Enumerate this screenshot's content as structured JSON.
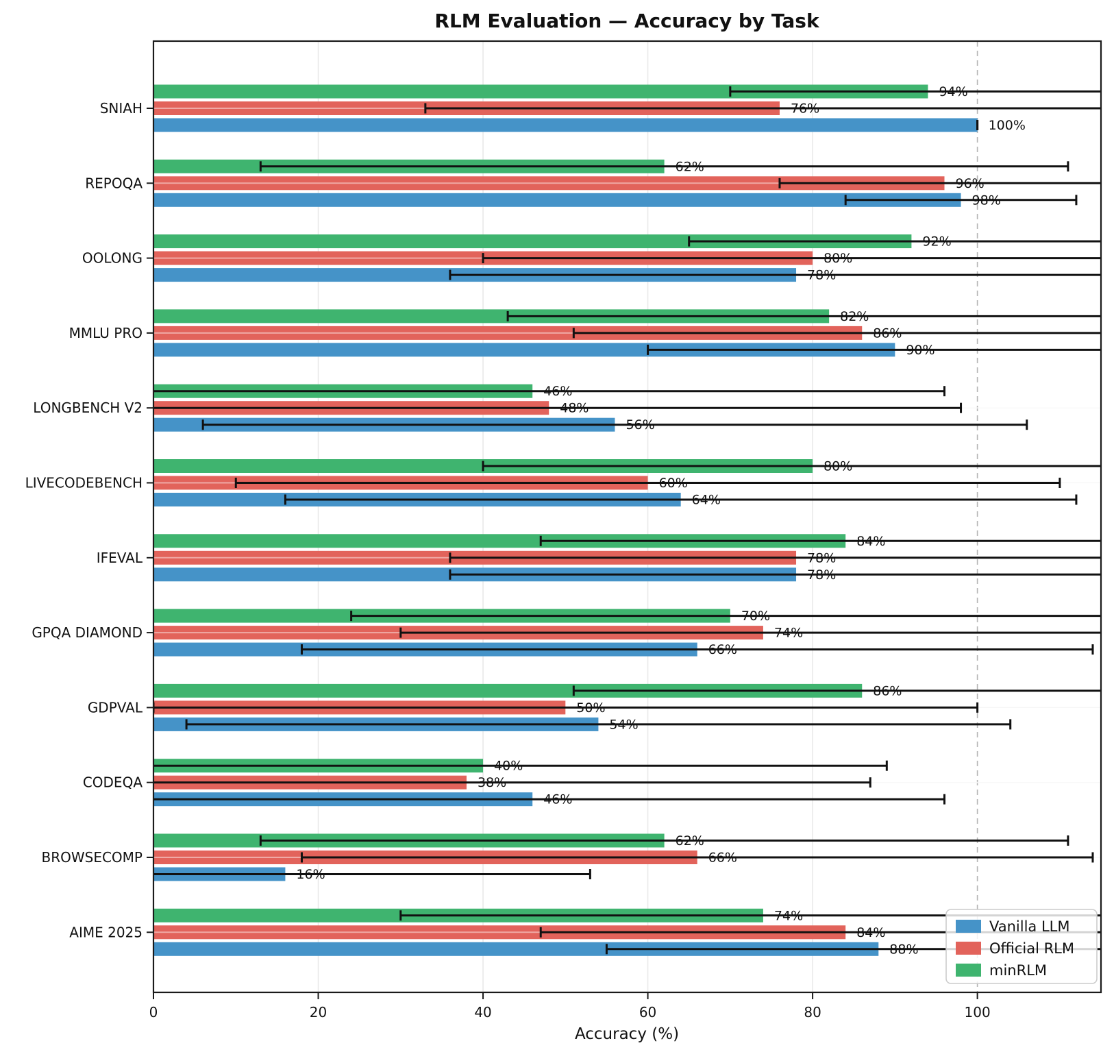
{
  "chart_data": {
    "type": "bar",
    "orientation": "horizontal",
    "title": "RLM Evaluation — Accuracy by Task",
    "xlabel": "Accuracy (%)",
    "xlim": [
      0,
      115
    ],
    "xticks": [
      0,
      20,
      40,
      60,
      80,
      100
    ],
    "grid": true,
    "reference_line_x": 100,
    "legend_position": "lower right",
    "value_label_format": "percent",
    "categories": [
      "SNIAH",
      "REPOQA",
      "OOLONG",
      "MMLU PRO",
      "LONGBENCH V2",
      "LIVECODEBENCH",
      "IFEVAL",
      "GPQA DIAMOND",
      "GDPVAL",
      "CODEQA",
      "BROWSECOMP",
      "AIME 2025"
    ],
    "series": [
      {
        "name": "Vanilla LLM",
        "color": "#4593C8",
        "values": [
          100,
          98,
          78,
          90,
          56,
          64,
          78,
          66,
          54,
          46,
          16,
          88
        ],
        "errors": [
          0,
          14,
          42,
          30,
          50,
          48,
          42,
          48,
          50,
          50,
          37,
          33
        ],
        "labels": [
          "100%",
          "98%",
          "78%",
          "90%",
          "56%",
          "64%",
          "78%",
          "66%",
          "54%",
          "46%",
          "16%",
          "88%"
        ]
      },
      {
        "name": "Official RLM",
        "color": "#E2635B",
        "values": [
          76,
          96,
          80,
          86,
          48,
          60,
          78,
          74,
          50,
          38,
          66,
          84
        ],
        "errors": [
          43,
          20,
          40,
          35,
          50,
          50,
          42,
          44,
          50,
          49,
          48,
          37
        ],
        "labels": [
          "76%",
          "96%",
          "80%",
          "86%",
          "48%",
          "60%",
          "78%",
          "74%",
          "50%",
          "38%",
          "66%",
          "84%"
        ]
      },
      {
        "name": "minRLM",
        "color": "#3FB46F",
        "values": [
          94,
          62,
          92,
          82,
          46,
          80,
          84,
          70,
          86,
          40,
          62,
          74
        ],
        "errors": [
          24,
          49,
          27,
          39,
          50,
          40,
          37,
          46,
          35,
          49,
          49,
          44
        ],
        "labels": [
          "94%",
          "62%",
          "92%",
          "82%",
          "46%",
          "80%",
          "84%",
          "70%",
          "86%",
          "40%",
          "62%",
          "74%"
        ]
      }
    ],
    "style": {
      "spine_color": "#1a1a1a",
      "grid_color": "#e8e8e8",
      "reference_line_color": "#b5b5b5",
      "errorbar_color": "#111111",
      "text_color": "#111111",
      "legend_border_color": "#cccccc",
      "legend_background": "#ffffff"
    }
  }
}
